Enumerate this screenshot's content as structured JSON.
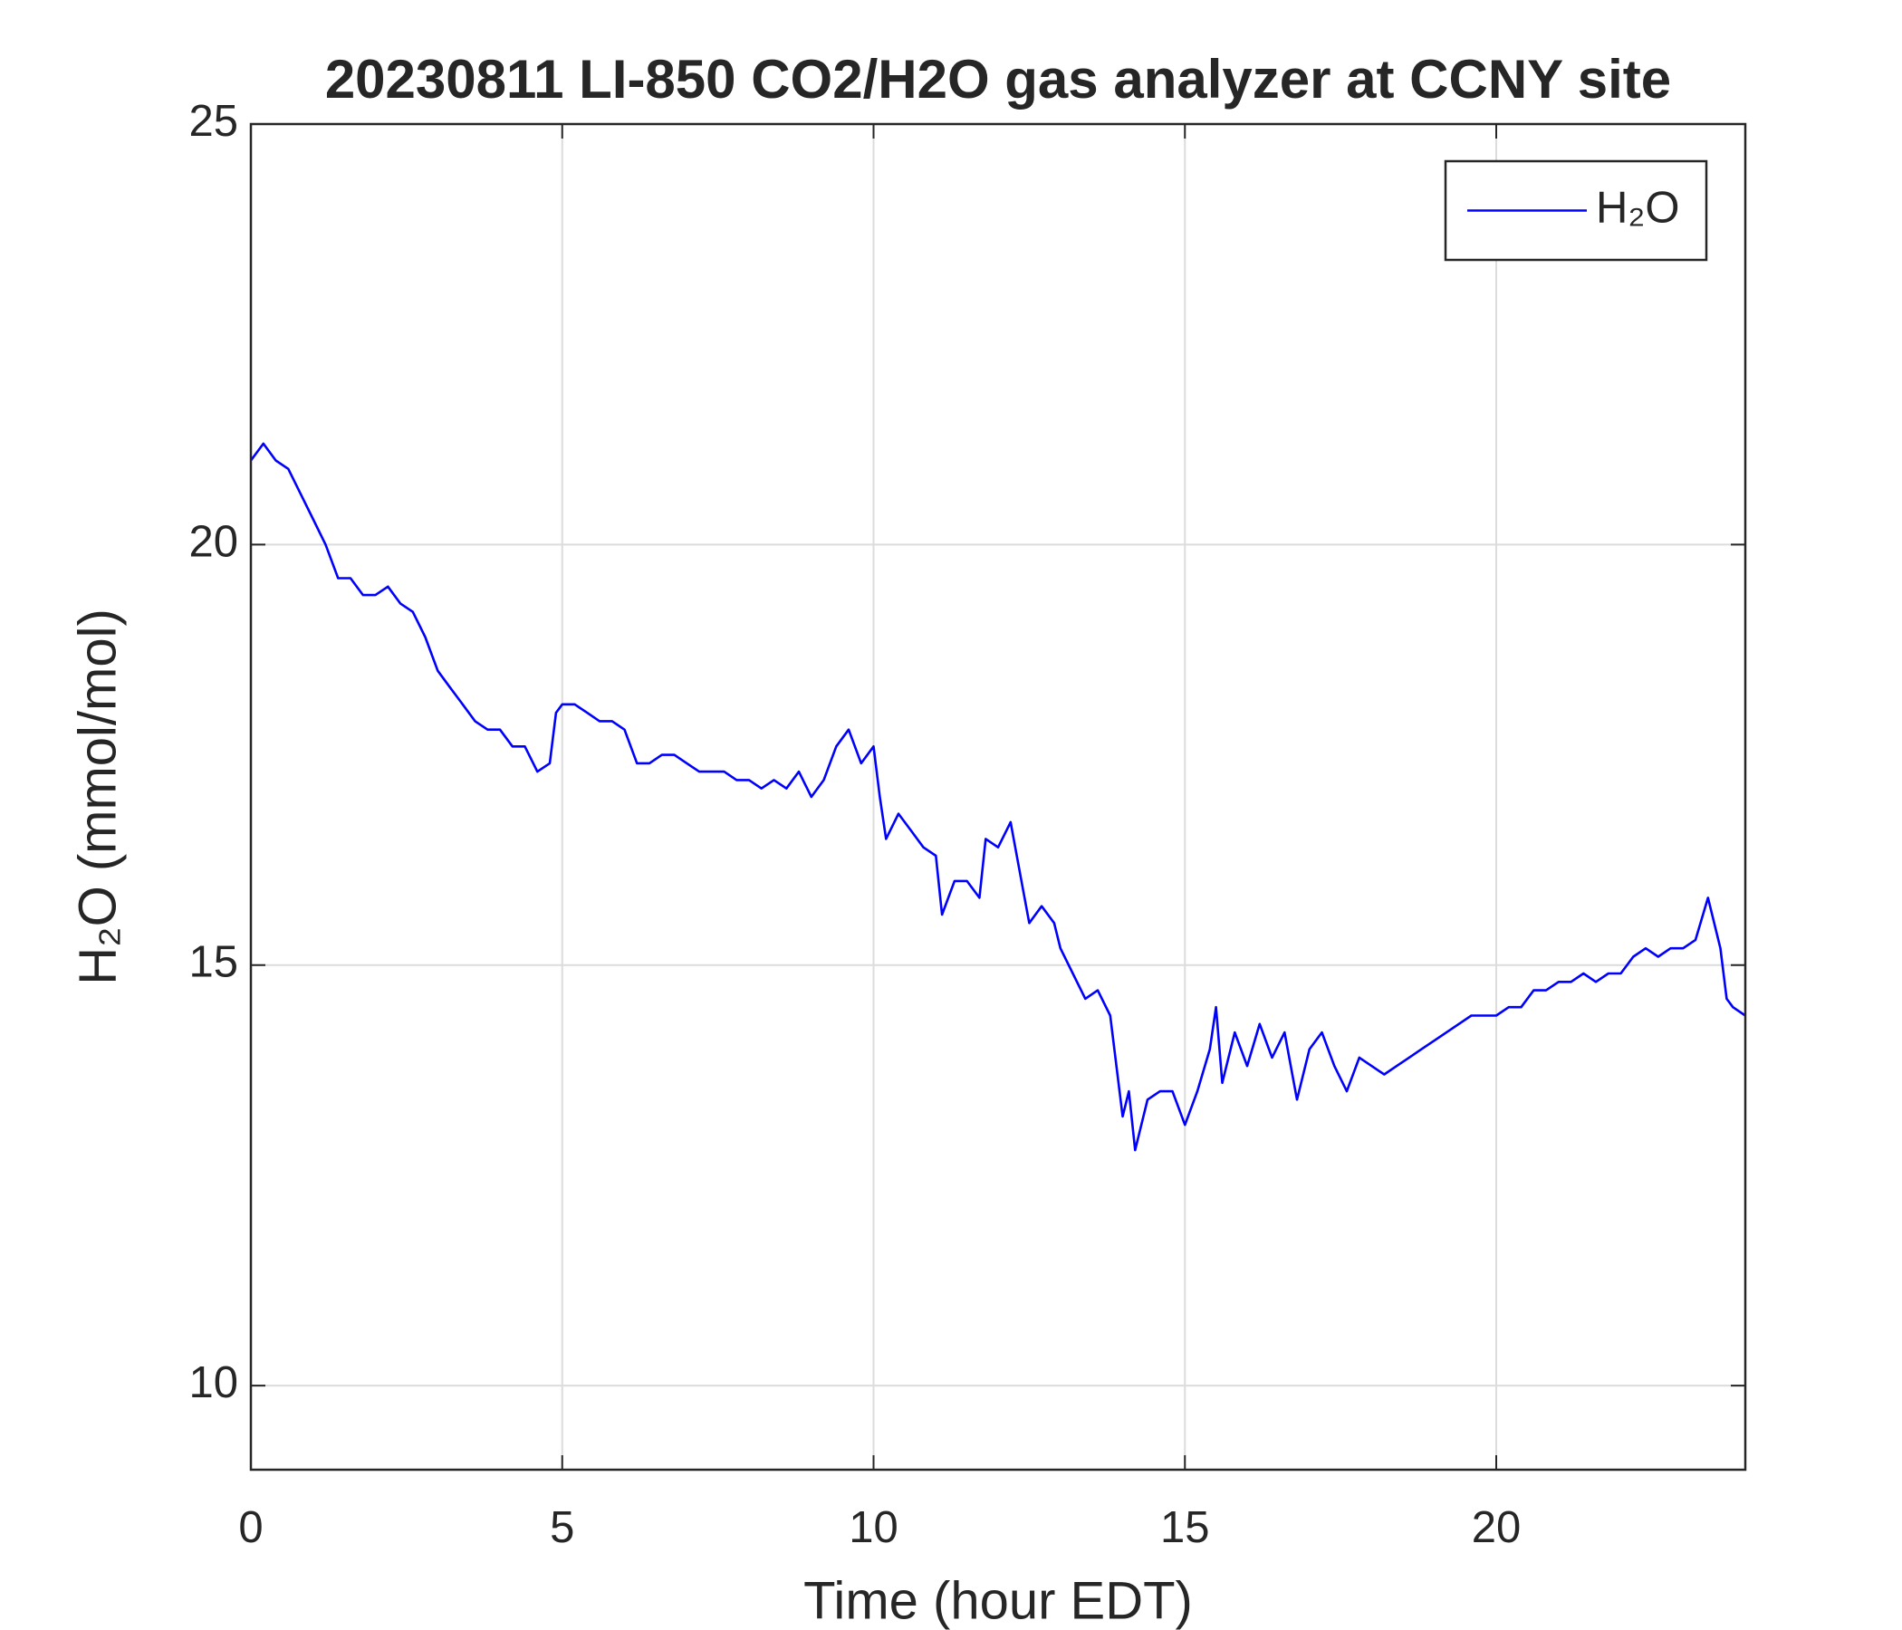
{
  "chart_data": {
    "type": "line",
    "title": "20230811 LI-850 CO2/H2O gas analyzer at CCNY site",
    "xlabel": "Time (hour EDT)",
    "ylabel": "H₂O (mmol/mol)",
    "x": [
      0,
      0.2,
      0.4,
      0.6,
      0.8,
      1.0,
      1.2,
      1.4,
      1.6,
      1.8,
      2.0,
      2.2,
      2.4,
      2.6,
      2.8,
      3.0,
      3.2,
      3.4,
      3.6,
      3.8,
      4.0,
      4.2,
      4.4,
      4.6,
      4.8,
      4.9,
      5.0,
      5.2,
      5.4,
      5.6,
      5.8,
      6.0,
      6.2,
      6.4,
      6.6,
      6.8,
      7.0,
      7.2,
      7.4,
      7.6,
      7.8,
      8.0,
      8.2,
      8.4,
      8.6,
      8.8,
      9.0,
      9.2,
      9.4,
      9.6,
      9.8,
      10.0,
      10.1,
      10.2,
      10.4,
      10.6,
      10.8,
      11.0,
      11.1,
      11.3,
      11.5,
      11.7,
      11.8,
      12.0,
      12.2,
      12.4,
      12.5,
      12.7,
      12.9,
      13.0,
      13.2,
      13.4,
      13.6,
      13.8,
      14.0,
      14.1,
      14.2,
      14.4,
      14.6,
      14.8,
      15.0,
      15.2,
      15.4,
      15.5,
      15.6,
      15.8,
      16.0,
      16.2,
      16.4,
      16.6,
      16.8,
      17.0,
      17.2,
      17.4,
      17.6,
      17.8,
      18.0,
      18.2,
      18.4,
      18.6,
      18.8,
      19.0,
      19.2,
      19.4,
      19.6,
      19.8,
      20.0,
      20.2,
      20.4,
      20.6,
      20.8,
      21.0,
      21.2,
      21.4,
      21.6,
      21.8,
      22.0,
      22.2,
      22.4,
      22.6,
      22.8,
      23.0,
      23.2,
      23.4,
      23.6,
      23.7,
      23.8,
      24.0
    ],
    "series": [
      {
        "name": "H₂O",
        "color": "#0000ff",
        "values": [
          21.0,
          21.2,
          21.0,
          20.9,
          20.6,
          20.3,
          20.0,
          19.6,
          19.6,
          19.4,
          19.4,
          19.5,
          19.3,
          19.2,
          18.9,
          18.5,
          18.3,
          18.1,
          17.9,
          17.8,
          17.8,
          17.6,
          17.6,
          17.3,
          17.4,
          18.0,
          18.1,
          18.1,
          18.0,
          17.9,
          17.9,
          17.8,
          17.4,
          17.4,
          17.5,
          17.5,
          17.4,
          17.3,
          17.3,
          17.3,
          17.2,
          17.2,
          17.1,
          17.2,
          17.1,
          17.3,
          17.0,
          17.2,
          17.6,
          17.8,
          17.4,
          17.6,
          17.0,
          16.5,
          16.8,
          16.6,
          16.4,
          16.3,
          15.6,
          16.0,
          16.0,
          15.8,
          16.5,
          16.4,
          16.7,
          15.9,
          15.5,
          15.7,
          15.5,
          15.2,
          14.9,
          14.6,
          14.7,
          14.4,
          13.2,
          13.5,
          12.8,
          13.4,
          13.5,
          13.5,
          13.1,
          13.5,
          14.0,
          14.5,
          13.6,
          14.2,
          13.8,
          14.3,
          13.9,
          14.2,
          13.4,
          14.0,
          14.2,
          13.8,
          13.5,
          13.9,
          13.8,
          13.7,
          13.8,
          13.9,
          14.0,
          14.1,
          14.2,
          14.3,
          14.4,
          14.4,
          14.4,
          14.5,
          14.5,
          14.7,
          14.7,
          14.8,
          14.8,
          14.9,
          14.8,
          14.9,
          14.9,
          15.1,
          15.2,
          15.1,
          15.2,
          15.2,
          15.3,
          15.8,
          15.2,
          14.6,
          14.5,
          14.4
        ]
      }
    ],
    "xlim": [
      0,
      24
    ],
    "xticks": [
      0,
      5,
      10,
      15,
      20
    ],
    "ylim": [
      9,
      25
    ],
    "yticks": [
      10,
      15,
      20,
      25
    ],
    "grid": true,
    "legend": "upper right"
  }
}
